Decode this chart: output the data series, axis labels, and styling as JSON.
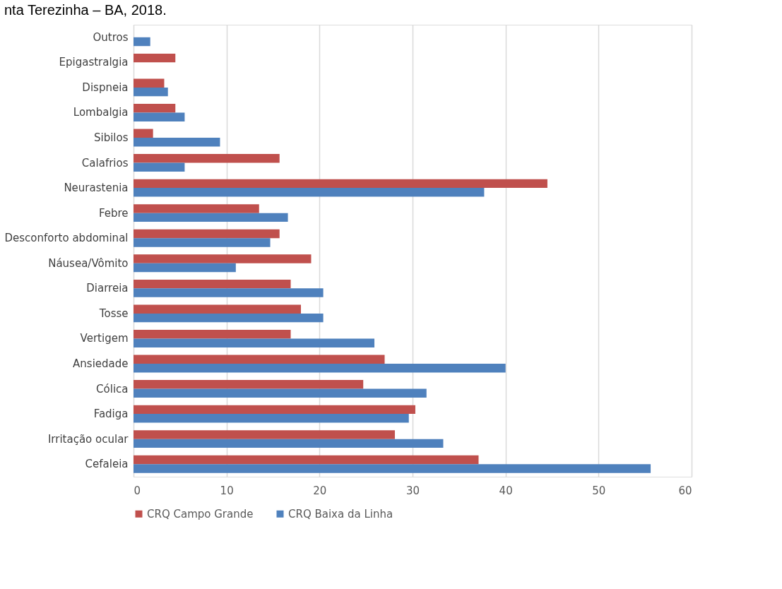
{
  "chart_data": {
    "type": "bar",
    "orientation": "horizontal",
    "title": "nta Terezinha – BA, 2018.",
    "categories": [
      "Outros",
      "Epigastralgia",
      "Dispneia",
      "Lombalgia",
      "Sibilos",
      "Calafrios",
      "Neurastenia",
      "Febre",
      "Desconforto abdominal",
      "Náusea/Vômito",
      "Diarreia",
      "Tosse",
      "Vertigem",
      "Ansiedade",
      "Cólica",
      "Fadiga",
      "Irritação ocular",
      "Cefaleia"
    ],
    "series": [
      {
        "name": "CRQ Campo Grande",
        "color": "#c0504d",
        "values": [
          null,
          4.5,
          3.3,
          4.5,
          2.1,
          15.7,
          44.5,
          13.5,
          15.7,
          19.1,
          16.9,
          18.0,
          16.9,
          27.0,
          24.7,
          30.3,
          28.1,
          37.1
        ]
      },
      {
        "name": "CRQ Baixa da Linha",
        "color": "#4f81bd",
        "values": [
          1.8,
          null,
          3.7,
          5.5,
          9.3,
          5.5,
          37.7,
          16.6,
          14.7,
          11.0,
          20.4,
          20.4,
          25.9,
          40.0,
          31.5,
          29.6,
          33.3,
          55.6
        ]
      }
    ],
    "xlim": [
      0,
      60
    ],
    "xticks": [
      0,
      10,
      20,
      30,
      40,
      50,
      60
    ],
    "grid": "x",
    "legend": "bottom"
  }
}
